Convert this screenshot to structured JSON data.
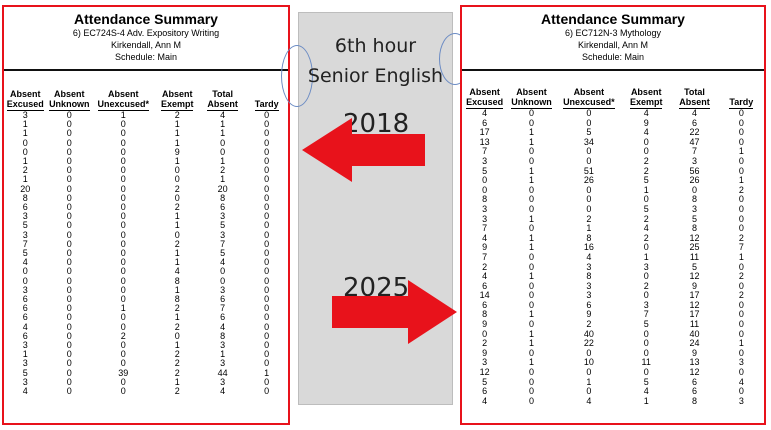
{
  "left": {
    "title": "Attendance Summary",
    "course": "6) EC724S-4 Adv. Expository Writing",
    "teacher": "Kirkendall, Ann M",
    "schedule": "Schedule: Main",
    "columns": [
      "Absent\nExcused",
      "Absent\nUnknown",
      "Absent\nUnexcused*",
      "Absent\nExempt",
      "Total\nAbsent",
      "Tardy"
    ],
    "rows": [
      [
        "3",
        "0",
        "1",
        "2",
        "4",
        "0"
      ],
      [
        "1",
        "0",
        "0",
        "1",
        "1",
        "0"
      ],
      [
        "1",
        "0",
        "0",
        "1",
        "1",
        "0"
      ],
      [
        "0",
        "0",
        "0",
        "1",
        "0",
        "0"
      ],
      [
        "0",
        "0",
        "0",
        "9",
        "0",
        "0"
      ],
      [
        "1",
        "0",
        "0",
        "1",
        "1",
        "0"
      ],
      [
        "2",
        "0",
        "0",
        "0",
        "2",
        "0"
      ],
      [
        "1",
        "0",
        "0",
        "0",
        "1",
        "0"
      ],
      [
        "20",
        "0",
        "0",
        "2",
        "20",
        "0"
      ],
      [
        "8",
        "0",
        "0",
        "0",
        "8",
        "0"
      ],
      [
        "6",
        "0",
        "0",
        "2",
        "6",
        "0"
      ],
      [
        "3",
        "0",
        "0",
        "1",
        "3",
        "0"
      ],
      [
        "5",
        "0",
        "0",
        "1",
        "5",
        "0"
      ],
      [
        "3",
        "0",
        "0",
        "0",
        "3",
        "0"
      ],
      [
        "7",
        "0",
        "0",
        "2",
        "7",
        "0"
      ],
      [
        "5",
        "0",
        "0",
        "1",
        "5",
        "0"
      ],
      [
        "4",
        "0",
        "0",
        "1",
        "4",
        "0"
      ],
      [
        "0",
        "0",
        "0",
        "4",
        "0",
        "0"
      ],
      [
        "0",
        "0",
        "0",
        "8",
        "0",
        "0"
      ],
      [
        "3",
        "0",
        "0",
        "1",
        "3",
        "0"
      ],
      [
        "6",
        "0",
        "0",
        "8",
        "6",
        "0"
      ],
      [
        "6",
        "0",
        "1",
        "2",
        "7",
        "0"
      ],
      [
        "6",
        "0",
        "0",
        "1",
        "6",
        "0"
      ],
      [
        "4",
        "0",
        "0",
        "2",
        "4",
        "0"
      ],
      [
        "6",
        "0",
        "2",
        "0",
        "8",
        "0"
      ],
      [
        "3",
        "0",
        "0",
        "1",
        "3",
        "0"
      ],
      [
        "1",
        "0",
        "0",
        "2",
        "1",
        "0"
      ],
      [
        "3",
        "0",
        "0",
        "2",
        "3",
        "0"
      ],
      [
        "5",
        "0",
        "39",
        "2",
        "44",
        "1"
      ],
      [
        "3",
        "0",
        "0",
        "1",
        "3",
        "0"
      ],
      [
        "4",
        "0",
        "0",
        "2",
        "4",
        "0"
      ]
    ]
  },
  "right": {
    "title": "Attendance Summary",
    "course": "6) EC712N-3 Mythology",
    "teacher": "Kirkendall, Ann M",
    "schedule": "Schedule: Main",
    "columns": [
      "Absent\nExcused",
      "Absent\nUnknown",
      "Absent\nUnexcused*",
      "Absent\nExempt",
      "Total\nAbsent",
      "Tardy"
    ],
    "rows": [
      [
        "4",
        "0",
        "0",
        "4",
        "4",
        "0"
      ],
      [
        "6",
        "0",
        "0",
        "9",
        "6",
        "0"
      ],
      [
        "17",
        "1",
        "5",
        "4",
        "22",
        "0"
      ],
      [
        "13",
        "1",
        "34",
        "0",
        "47",
        "0"
      ],
      [
        "7",
        "0",
        "0",
        "0",
        "7",
        "1"
      ],
      [
        "3",
        "0",
        "0",
        "2",
        "3",
        "0"
      ],
      [
        "5",
        "1",
        "51",
        "2",
        "56",
        "0"
      ],
      [
        "0",
        "1",
        "26",
        "5",
        "26",
        "1"
      ],
      [
        "0",
        "0",
        "0",
        "1",
        "0",
        "2"
      ],
      [
        "8",
        "0",
        "0",
        "0",
        "8",
        "0"
      ],
      [
        "3",
        "0",
        "0",
        "5",
        "3",
        "0"
      ],
      [
        "3",
        "1",
        "2",
        "2",
        "5",
        "0"
      ],
      [
        "7",
        "0",
        "1",
        "4",
        "8",
        "0"
      ],
      [
        "4",
        "1",
        "8",
        "2",
        "12",
        "2"
      ],
      [
        "9",
        "1",
        "16",
        "0",
        "25",
        "7"
      ],
      [
        "7",
        "0",
        "4",
        "1",
        "11",
        "1"
      ],
      [
        "2",
        "0",
        "3",
        "3",
        "5",
        "0"
      ],
      [
        "4",
        "1",
        "8",
        "0",
        "12",
        "2"
      ],
      [
        "6",
        "0",
        "3",
        "2",
        "9",
        "0"
      ],
      [
        "14",
        "0",
        "3",
        "0",
        "17",
        "2"
      ],
      [
        "6",
        "0",
        "6",
        "3",
        "12",
        "0"
      ],
      [
        "8",
        "1",
        "9",
        "7",
        "17",
        "0"
      ],
      [
        "9",
        "0",
        "2",
        "5",
        "11",
        "0"
      ],
      [
        "0",
        "1",
        "40",
        "0",
        "40",
        "0"
      ],
      [
        "2",
        "1",
        "22",
        "0",
        "24",
        "1"
      ],
      [
        "9",
        "0",
        "0",
        "0",
        "9",
        "0"
      ],
      [
        "3",
        "1",
        "10",
        "11",
        "13",
        "3"
      ],
      [
        "12",
        "0",
        "0",
        "0",
        "12",
        "0"
      ],
      [
        "5",
        "0",
        "1",
        "5",
        "6",
        "4"
      ],
      [
        "6",
        "0",
        "0",
        "4",
        "6",
        "0"
      ],
      [
        "4",
        "0",
        "4",
        "1",
        "8",
        "3"
      ]
    ]
  },
  "middle": {
    "line1": "6th hour",
    "line2": "Senior English",
    "year_old": "2018",
    "year_new": "2025"
  },
  "colors": {
    "arrow": "#e8121b",
    "border": "#e8121b",
    "middle_bg": "#d9d9d9"
  }
}
